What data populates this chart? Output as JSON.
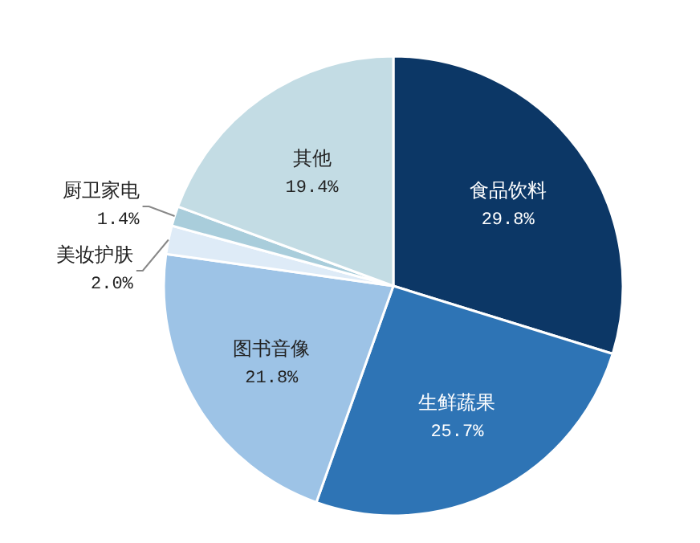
{
  "chart_data": {
    "type": "pie",
    "categories": [
      "食品饮料",
      "生鲜蔬果",
      "图书音像",
      "美妆护肤",
      "厨卫家电",
      "其他"
    ],
    "values": [
      29.8,
      25.7,
      21.8,
      2.0,
      1.4,
      19.4
    ],
    "colors": [
      "#0c3766",
      "#2e74b5",
      "#9dc3e6",
      "#deebf7",
      "#a9cddb",
      "#c3dce4"
    ],
    "value_labels": [
      "29.8%",
      "25.7%",
      "21.8%",
      "2.0%",
      "1.4%",
      "19.4%"
    ]
  }
}
